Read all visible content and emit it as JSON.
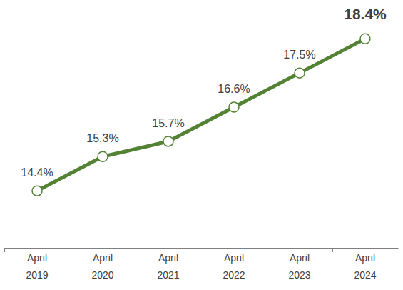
{
  "chart_data": {
    "type": "line",
    "categories": [
      "April 2019",
      "April 2020",
      "April 2021",
      "April 2022",
      "April 2023",
      "April 2024"
    ],
    "values": [
      14.4,
      15.3,
      15.7,
      16.6,
      17.5,
      18.4
    ],
    "value_labels": [
      "14.4%",
      "15.3%",
      "15.7%",
      "16.6%",
      "17.5%",
      "18.4%"
    ],
    "color": "#548235",
    "ylim": [
      12.9,
      19.4
    ],
    "tick_labels": "x",
    "data_labels": true,
    "marker": "circle"
  }
}
